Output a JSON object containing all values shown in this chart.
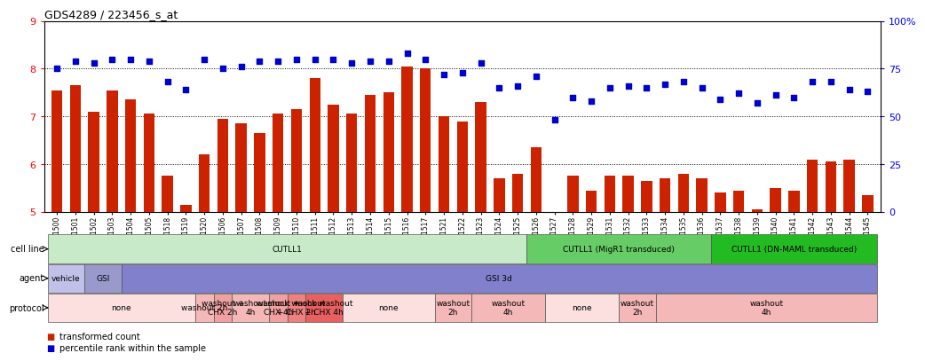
{
  "title": "GDS4289 / 223456_s_at",
  "bar_color": "#cc2200",
  "dot_color": "#0000cc",
  "ylim_left": [
    5,
    9
  ],
  "ylim_right": [
    0,
    100
  ],
  "yticks_left": [
    5,
    6,
    7,
    8,
    9
  ],
  "yticks_right": [
    0,
    25,
    50,
    75,
    100
  ],
  "samples": [
    "GSM731500",
    "GSM731501",
    "GSM731502",
    "GSM731503",
    "GSM731504",
    "GSM731505",
    "GSM731518",
    "GSM731519",
    "GSM731520",
    "GSM731506",
    "GSM731507",
    "GSM731508",
    "GSM731509",
    "GSM731510",
    "GSM731511",
    "GSM731512",
    "GSM731513",
    "GSM731514",
    "GSM731515",
    "GSM731516",
    "GSM731517",
    "GSM731521",
    "GSM731522",
    "GSM731523",
    "GSM731524",
    "GSM731525",
    "GSM731526",
    "GSM731527",
    "GSM731528",
    "GSM731529",
    "GSM731531",
    "GSM731532",
    "GSM731533",
    "GSM731534",
    "GSM731535",
    "GSM731536",
    "GSM731537",
    "GSM731538",
    "GSM731539",
    "GSM731540",
    "GSM731541",
    "GSM731542",
    "GSM731543",
    "GSM731544",
    "GSM731545"
  ],
  "bar_values": [
    7.55,
    7.65,
    7.1,
    7.55,
    7.35,
    7.05,
    5.75,
    5.15,
    6.2,
    6.95,
    6.85,
    6.65,
    7.05,
    7.15,
    7.8,
    7.25,
    7.05,
    7.45,
    7.5,
    8.05,
    8.0,
    7.0,
    6.9,
    7.3,
    5.7,
    5.8,
    6.35,
    5.0,
    5.75,
    5.45,
    5.75,
    5.75,
    5.65,
    5.7,
    5.8,
    5.7,
    5.4,
    5.45,
    5.05,
    5.5,
    5.45,
    6.1,
    6.05,
    6.1,
    5.35
  ],
  "dot_values": [
    75,
    79,
    78,
    80,
    80,
    79,
    68,
    64,
    80,
    75,
    76,
    79,
    79,
    80,
    80,
    80,
    78,
    79,
    79,
    83,
    80,
    72,
    73,
    78,
    65,
    66,
    71,
    48,
    60,
    58,
    65,
    66,
    65,
    67,
    68,
    65,
    59,
    62,
    57,
    61,
    60,
    68,
    68,
    64,
    63
  ],
  "cell_line_groups": [
    {
      "label": "CUTLL1",
      "start": 0,
      "end": 26,
      "color": "#c8eac8"
    },
    {
      "label": "CUTLL1 (MigR1 transduced)",
      "start": 26,
      "end": 36,
      "color": "#66cc66"
    },
    {
      "label": "CUTLL1 (DN-MAML transduced)",
      "start": 36,
      "end": 45,
      "color": "#22bb22"
    }
  ],
  "agent_groups": [
    {
      "label": "vehicle",
      "start": 0,
      "end": 2,
      "color": "#c0c0e8"
    },
    {
      "label": "GSI",
      "start": 2,
      "end": 4,
      "color": "#9999cc"
    },
    {
      "label": "GSI 3d",
      "start": 4,
      "end": 45,
      "color": "#8080cc"
    }
  ],
  "protocol_groups": [
    {
      "label": "none",
      "start": 0,
      "end": 8,
      "color": "#fce0e0"
    },
    {
      "label": "washout 2h",
      "start": 8,
      "end": 9,
      "color": "#f4b8b8"
    },
    {
      "label": "washout +\nCHX 2h",
      "start": 9,
      "end": 10,
      "color": "#f0a0a0"
    },
    {
      "label": "washout\n4h",
      "start": 10,
      "end": 12,
      "color": "#f4b8b8"
    },
    {
      "label": "washout +\nCHX 4h",
      "start": 12,
      "end": 13,
      "color": "#f0a0a0"
    },
    {
      "label": "mock washout\n+ CHX 2h",
      "start": 13,
      "end": 14,
      "color": "#ee8080"
    },
    {
      "label": "mock washout\n+ CHX 4h",
      "start": 14,
      "end": 16,
      "color": "#e86060"
    },
    {
      "label": "none",
      "start": 16,
      "end": 21,
      "color": "#fce0e0"
    },
    {
      "label": "washout\n2h",
      "start": 21,
      "end": 23,
      "color": "#f4b8b8"
    },
    {
      "label": "washout\n4h",
      "start": 23,
      "end": 27,
      "color": "#f4b8b8"
    },
    {
      "label": "none",
      "start": 27,
      "end": 31,
      "color": "#fce0e0"
    },
    {
      "label": "washout\n2h",
      "start": 31,
      "end": 33,
      "color": "#f4b8b8"
    },
    {
      "label": "washout\n4h",
      "start": 33,
      "end": 45,
      "color": "#f4b8b8"
    }
  ],
  "row_labels": [
    "cell line",
    "agent",
    "protocol"
  ],
  "background_color": "#ffffff"
}
